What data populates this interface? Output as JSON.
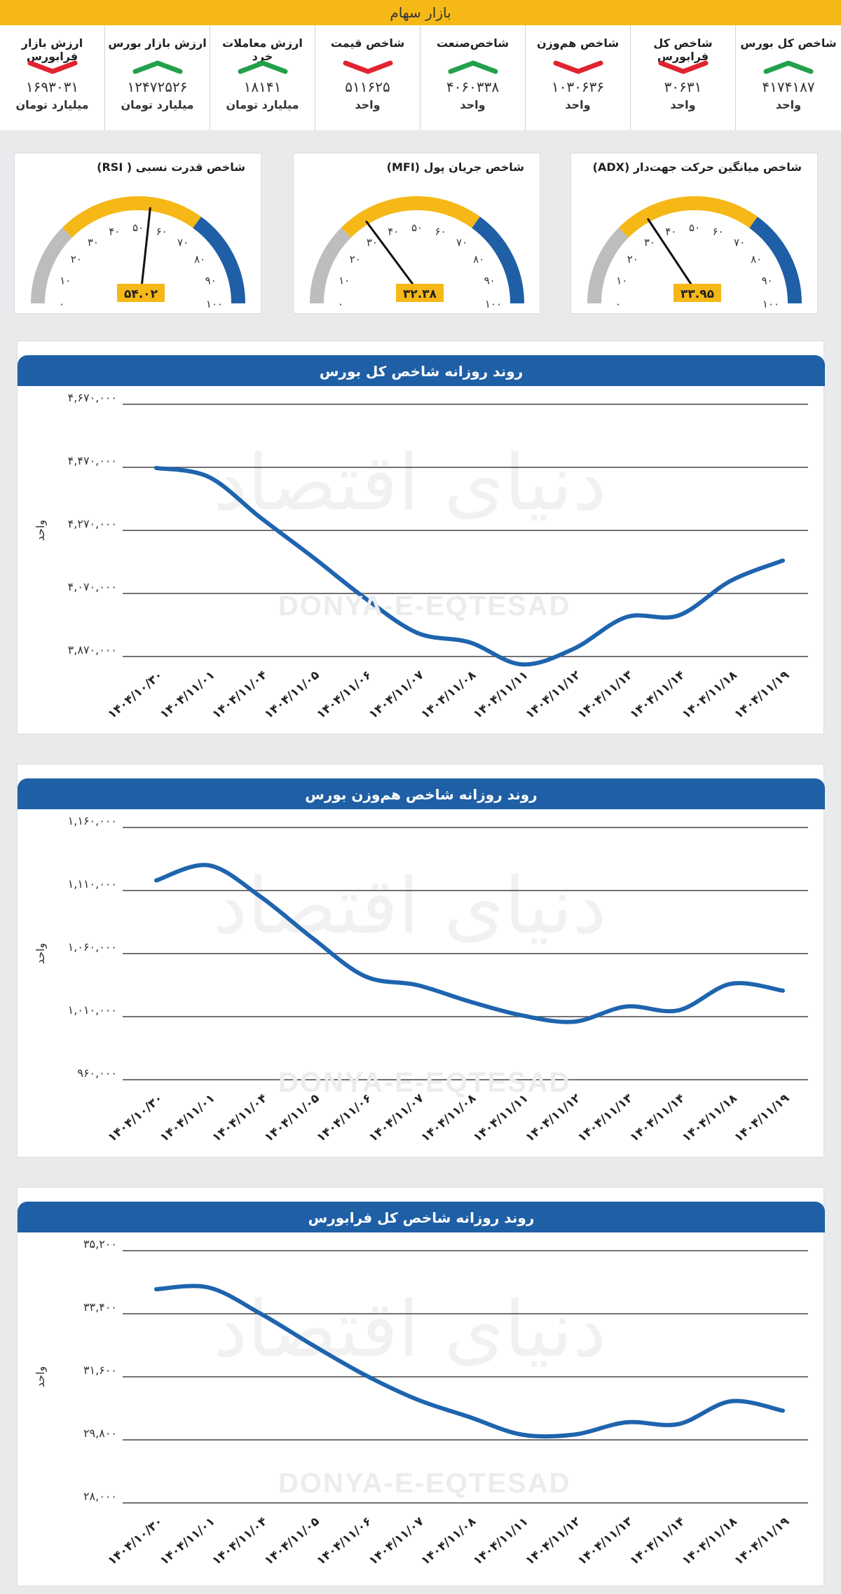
{
  "banner": {
    "title": "بازار سهام"
  },
  "colors": {
    "up": "#23a04c",
    "down": "#e0232e",
    "accent": "#f5b817",
    "navy": "#1f5fa6",
    "line": "#1e64ae",
    "gray": "#bdbdbd"
  },
  "metrics": [
    {
      "title": "شاخص کل بورس",
      "value": "۴۱۷۴۱۸۷",
      "unit": "واحد",
      "trend": "up"
    },
    {
      "title": "شاخص کل فرابورس",
      "value": "۳۰۶۳۱",
      "unit": "واحد",
      "trend": "down"
    },
    {
      "title": "شاخص هم‌وزن",
      "value": "۱۰۳۰۶۳۶",
      "unit": "واحد",
      "trend": "down"
    },
    {
      "title": "شاخص‌صنعت",
      "value": "۴۰۶۰۳۳۸",
      "unit": "واحد",
      "trend": "up"
    },
    {
      "title": "شاخص قیمت",
      "value": "۵۱۱۶۲۵",
      "unit": "واحد",
      "trend": "down"
    },
    {
      "title": "ارزش معاملات خرد",
      "value": "۱۸۱۴۱",
      "unit": "میلیارد تومان",
      "trend": "up"
    },
    {
      "title": "ارزش بازار بورس",
      "value": "۱۲۴۷۲۵۲۶",
      "unit": "میلیارد تومان",
      "trend": "up"
    },
    {
      "title": "ارزش بازار فرابورس",
      "value": "۱۶۹۳۰۳۱",
      "unit": "میلیارد تومان",
      "trend": "down"
    }
  ],
  "gauges": [
    {
      "title": "شاخص میانگین حرکت جهت‌دار (ADX)",
      "value": 33.95,
      "value_label": "۳۳.۹۵",
      "ticks": [
        "۰",
        "۱۰",
        "۲۰",
        "۳۰",
        "۴۰",
        "۵۰",
        "۶۰",
        "۷۰",
        "۸۰",
        "۹۰",
        "۱۰۰"
      ]
    },
    {
      "title": "شاخص جریان پول (MFI)",
      "value": 32.38,
      "value_label": "۳۲.۳۸",
      "ticks": [
        "۰",
        "۱۰",
        "۲۰",
        "۳۰",
        "۴۰",
        "۵۰",
        "۶۰",
        "۷۰",
        "۸۰",
        "۹۰",
        "۱۰۰"
      ]
    },
    {
      "title": "شاخص قدرت نسبی ( RSI)",
      "value": 54.02,
      "value_label": "۵۴.۰۲",
      "ticks": [
        "۰",
        "۱۰",
        "۲۰",
        "۳۰",
        "۴۰",
        "۵۰",
        "۶۰",
        "۷۰",
        "۸۰",
        "۹۰",
        "۱۰۰"
      ]
    }
  ],
  "watermark": {
    "brand": "DONYA-E-EQTESAD",
    "logo_text": "دنیای اقتصاد"
  },
  "chart_data": [
    {
      "type": "line",
      "title": "روند روزانه شاخص کل بورس",
      "ylabel": "واحد",
      "ylim": [
        3870000,
        4670000
      ],
      "yticks": [
        "۴,۶۷۰,۰۰۰",
        "۴,۴۷۰,۰۰۰",
        "۴,۲۷۰,۰۰۰",
        "۴,۰۷۰,۰۰۰",
        "۳,۸۷۰,۰۰۰"
      ],
      "categories": [
        "۱۴۰۴/۱۰/۳۰",
        "۱۴۰۴/۱۱/۰۱",
        "۱۴۰۴/۱۱/۰۴",
        "۱۴۰۴/۱۱/۰۵",
        "۱۴۰۴/۱۱/۰۶",
        "۱۴۰۴/۱۱/۰۷",
        "۱۴۰۴/۱۱/۰۸",
        "۱۴۰۴/۱۱/۱۱",
        "۱۴۰۴/۱۱/۱۲",
        "۱۴۰۴/۱۱/۱۳",
        "۱۴۰۴/۱۱/۱۴",
        "۱۴۰۴/۱۱/۱۸",
        "۱۴۰۴/۱۱/۱۹"
      ],
      "values": [
        4468000,
        4440000,
        4310000,
        4185000,
        4055000,
        3945000,
        3915000,
        3845000,
        3895000,
        3995000,
        4000000,
        4110000,
        4174187
      ]
    },
    {
      "type": "line",
      "title": "روند روزانه شاخص هم‌وزن بورس",
      "ylabel": "واحد",
      "ylim": [
        960000,
        1160000
      ],
      "yticks": [
        "۱,۱۶۰,۰۰۰",
        "۱,۱۱۰,۰۰۰",
        "۱,۰۶۰,۰۰۰",
        "۱,۰۱۰,۰۰۰",
        "۹۶۰,۰۰۰"
      ],
      "categories": [
        "۱۴۰۴/۱۰/۳۰",
        "۱۴۰۴/۱۱/۰۱",
        "۱۴۰۴/۱۱/۰۴",
        "۱۴۰۴/۱۱/۰۵",
        "۱۴۰۴/۱۱/۰۶",
        "۱۴۰۴/۱۱/۰۷",
        "۱۴۰۴/۱۱/۰۸",
        "۱۴۰۴/۱۱/۱۱",
        "۱۴۰۴/۱۱/۱۲",
        "۱۴۰۴/۱۱/۱۳",
        "۱۴۰۴/۱۱/۱۴",
        "۱۴۰۴/۱۱/۱۸",
        "۱۴۰۴/۱۱/۱۹"
      ],
      "values": [
        1118000,
        1130000,
        1105000,
        1072000,
        1042000,
        1035000,
        1022000,
        1011000,
        1006000,
        1018000,
        1015000,
        1036000,
        1030636
      ]
    },
    {
      "type": "line",
      "title": "روند روزانه شاخص کل فرابورس",
      "ylabel": "واحد",
      "ylim": [
        28000,
        35200
      ],
      "yticks": [
        "۳۵,۲۰۰",
        "۳۳,۴۰۰",
        "۳۱,۶۰۰",
        "۲۹,۸۰۰",
        "۲۸,۰۰۰"
      ],
      "categories": [
        "۱۴۰۴/۱۰/۳۰",
        "۱۴۰۴/۱۱/۰۱",
        "۱۴۰۴/۱۱/۰۴",
        "۱۴۰۴/۱۱/۰۵",
        "۱۴۰۴/۱۱/۰۶",
        "۱۴۰۴/۱۱/۰۷",
        "۱۴۰۴/۱۱/۰۸",
        "۱۴۰۴/۱۱/۱۱",
        "۱۴۰۴/۱۱/۱۲",
        "۱۴۰۴/۱۱/۱۳",
        "۱۴۰۴/۱۱/۱۴",
        "۱۴۰۴/۱۱/۱۸",
        "۱۴۰۴/۱۱/۱۹"
      ],
      "values": [
        34100,
        34150,
        33400,
        32500,
        31650,
        30950,
        30450,
        29950,
        29950,
        30300,
        30250,
        30900,
        30631
      ]
    }
  ]
}
